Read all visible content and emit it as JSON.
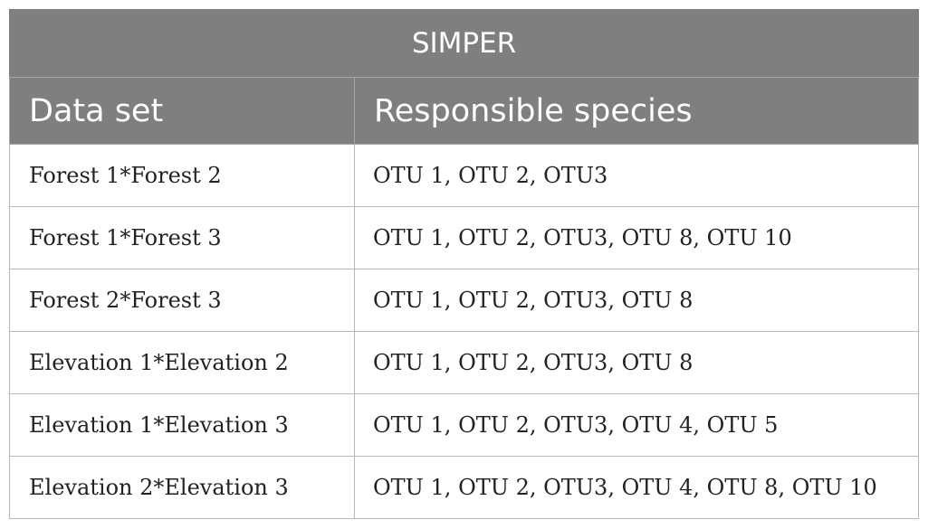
{
  "table": {
    "title": "SIMPER",
    "headers": [
      "Data set",
      "Responsible species"
    ],
    "rows": [
      {
        "data_set": "Forest 1*Forest 2",
        "species": "OTU 1, OTU 2, OTU3"
      },
      {
        "data_set": "Forest 1*Forest 3",
        "species": "OTU 1, OTU 2, OTU3, OTU 8, OTU 10"
      },
      {
        "data_set": "Forest 2*Forest 3",
        "species": "OTU 1, OTU 2, OTU3, OTU 8"
      },
      {
        "data_set": "Elevation 1*Elevation 2",
        "species": "OTU 1, OTU 2, OTU3, OTU 8"
      },
      {
        "data_set": "Elevation 1*Elevation 3",
        "species": "OTU 1, OTU 2, OTU3, OTU 4, OTU 5"
      },
      {
        "data_set": "Elevation 2*Elevation 3",
        "species": "OTU 1, OTU 2, OTU3, OTU 4, OTU 8, OTU 10"
      }
    ]
  },
  "colors": {
    "header_background": "#7f7f7f",
    "header_text": "#ffffff",
    "grid_lines": "#b8b8b8",
    "body_text": "#222222"
  }
}
